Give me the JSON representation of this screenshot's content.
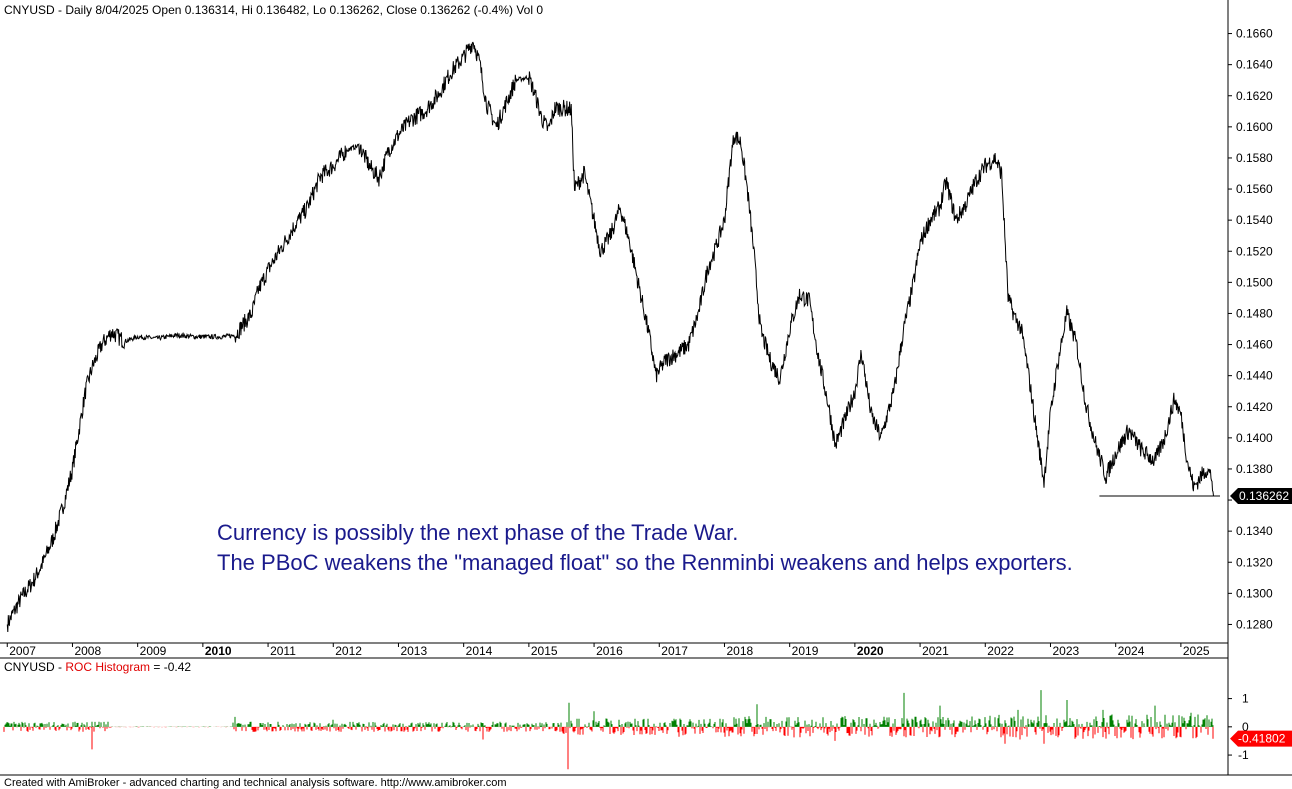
{
  "header": {
    "symbol": "CNYUSD",
    "info": " - Daily 8/04/2025 Open 0.136314, Hi 0.136482, Lo 0.136262, Close 0.136262 (-0.4%) Vol 0"
  },
  "price_panel": {
    "y_ticks": [
      "0.1660",
      "0.1640",
      "0.1620",
      "0.1600",
      "0.1580",
      "0.1560",
      "0.1540",
      "0.1520",
      "0.1500",
      "0.1480",
      "0.1460",
      "0.1440",
      "0.1420",
      "0.1400",
      "0.1380",
      "0.1360",
      "0.1340",
      "0.1320",
      "0.1300",
      "0.1280"
    ],
    "last_price_label": "0.136262"
  },
  "x_ticks": [
    {
      "label": "2007",
      "bold": false
    },
    {
      "label": "2008",
      "bold": false
    },
    {
      "label": "2009",
      "bold": false
    },
    {
      "label": "2010",
      "bold": true
    },
    {
      "label": "2011",
      "bold": false
    },
    {
      "label": "2012",
      "bold": false
    },
    {
      "label": "2013",
      "bold": false
    },
    {
      "label": "2014",
      "bold": false
    },
    {
      "label": "2015",
      "bold": false
    },
    {
      "label": "2016",
      "bold": false
    },
    {
      "label": "2017",
      "bold": false
    },
    {
      "label": "2018",
      "bold": false
    },
    {
      "label": "2019",
      "bold": false
    },
    {
      "label": "2020",
      "bold": true
    },
    {
      "label": "2021",
      "bold": false
    },
    {
      "label": "2022",
      "bold": false
    },
    {
      "label": "2023",
      "bold": false
    },
    {
      "label": "2024",
      "bold": false
    },
    {
      "label": "2025",
      "bold": false
    }
  ],
  "annotation": {
    "line1": "Currency is possibly the next phase of the Trade War.",
    "line2": "The PBoC weakens the \"managed float\" so the Renminbi weakens and helps exporters."
  },
  "roc_panel": {
    "symbol": "CNYUSD",
    "sep": " - ",
    "indicator": "ROC Histogram",
    "value_text": " = -0.42",
    "y_ticks": [
      "1",
      "0",
      "-1"
    ],
    "last_value_label": "-0.41802"
  },
  "footer": "Created with AmiBroker - advanced charting and technical analysis software. http://www.amibroker.com",
  "colors": {
    "price_line": "#000000",
    "roc_up": "#008000",
    "roc_down": "#ff0000",
    "annotation": "#1a1a8c",
    "label_bg": "#000000"
  },
  "chart_data": {
    "type": "line",
    "series": [
      {
        "values": [
          [
            2007.0,
            0.128
          ],
          [
            2007.2,
            0.1296
          ],
          [
            2007.4,
            0.1308
          ],
          [
            2007.55,
            0.132
          ],
          [
            2007.7,
            0.1335
          ],
          [
            2007.85,
            0.1355
          ],
          [
            2008.0,
            0.138
          ],
          [
            2008.1,
            0.1405
          ],
          [
            2008.2,
            0.143
          ],
          [
            2008.3,
            0.1445
          ],
          [
            2008.45,
            0.146
          ],
          [
            2008.6,
            0.1468
          ],
          [
            2008.8,
            0.1462
          ],
          [
            2009.0,
            0.1465
          ],
          [
            2009.3,
            0.1464
          ],
          [
            2009.6,
            0.1466
          ],
          [
            2009.9,
            0.1465
          ],
          [
            2010.3,
            0.1465
          ],
          [
            2010.5,
            0.1466
          ],
          [
            2010.6,
            0.1472
          ],
          [
            2010.75,
            0.148
          ],
          [
            2010.85,
            0.1495
          ],
          [
            2011.0,
            0.1508
          ],
          [
            2011.2,
            0.1522
          ],
          [
            2011.4,
            0.1536
          ],
          [
            2011.6,
            0.1548
          ],
          [
            2011.8,
            0.1568
          ],
          [
            2012.0,
            0.1575
          ],
          [
            2012.2,
            0.1585
          ],
          [
            2012.4,
            0.1588
          ],
          [
            2012.55,
            0.1575
          ],
          [
            2012.7,
            0.1567
          ],
          [
            2012.85,
            0.1585
          ],
          [
            2013.0,
            0.1595
          ],
          [
            2013.2,
            0.1605
          ],
          [
            2013.4,
            0.161
          ],
          [
            2013.6,
            0.162
          ],
          [
            2013.8,
            0.1635
          ],
          [
            2014.0,
            0.1645
          ],
          [
            2014.15,
            0.1655
          ],
          [
            2014.25,
            0.164
          ],
          [
            2014.35,
            0.1615
          ],
          [
            2014.5,
            0.16
          ],
          [
            2014.65,
            0.1615
          ],
          [
            2014.8,
            0.163
          ],
          [
            2015.0,
            0.1632
          ],
          [
            2015.1,
            0.162
          ],
          [
            2015.2,
            0.1605
          ],
          [
            2015.3,
            0.1598
          ],
          [
            2015.4,
            0.1612
          ],
          [
            2015.55,
            0.1612
          ],
          [
            2015.65,
            0.1611
          ],
          [
            2015.7,
            0.156
          ],
          [
            2015.85,
            0.157
          ],
          [
            2016.0,
            0.154
          ],
          [
            2016.1,
            0.152
          ],
          [
            2016.25,
            0.153
          ],
          [
            2016.4,
            0.1548
          ],
          [
            2016.55,
            0.1525
          ],
          [
            2016.7,
            0.1495
          ],
          [
            2016.85,
            0.1465
          ],
          [
            2016.95,
            0.144
          ],
          [
            2017.1,
            0.145
          ],
          [
            2017.3,
            0.1455
          ],
          [
            2017.45,
            0.146
          ],
          [
            2017.6,
            0.148
          ],
          [
            2017.75,
            0.151
          ],
          [
            2017.85,
            0.152
          ],
          [
            2018.0,
            0.154
          ],
          [
            2018.1,
            0.158
          ],
          [
            2018.15,
            0.1595
          ],
          [
            2018.25,
            0.159
          ],
          [
            2018.35,
            0.156
          ],
          [
            2018.45,
            0.152
          ],
          [
            2018.55,
            0.147
          ],
          [
            2018.7,
            0.145
          ],
          [
            2018.85,
            0.1438
          ],
          [
            2019.0,
            0.147
          ],
          [
            2019.15,
            0.1492
          ],
          [
            2019.3,
            0.1488
          ],
          [
            2019.45,
            0.145
          ],
          [
            2019.6,
            0.142
          ],
          [
            2019.7,
            0.1395
          ],
          [
            2019.85,
            0.1412
          ],
          [
            2020.0,
            0.143
          ],
          [
            2020.1,
            0.1455
          ],
          [
            2020.25,
            0.1415
          ],
          [
            2020.4,
            0.14
          ],
          [
            2020.6,
            0.143
          ],
          [
            2020.75,
            0.147
          ],
          [
            2020.9,
            0.15
          ],
          [
            2021.0,
            0.1525
          ],
          [
            2021.15,
            0.154
          ],
          [
            2021.3,
            0.1548
          ],
          [
            2021.4,
            0.1565
          ],
          [
            2021.55,
            0.154
          ],
          [
            2021.7,
            0.155
          ],
          [
            2021.85,
            0.1565
          ],
          [
            2022.0,
            0.1575
          ],
          [
            2022.15,
            0.158
          ],
          [
            2022.25,
            0.157
          ],
          [
            2022.35,
            0.149
          ],
          [
            2022.45,
            0.1478
          ],
          [
            2022.55,
            0.147
          ],
          [
            2022.65,
            0.1445
          ],
          [
            2022.8,
            0.14
          ],
          [
            2022.9,
            0.1372
          ],
          [
            2023.0,
            0.1415
          ],
          [
            2023.1,
            0.1445
          ],
          [
            2023.25,
            0.148
          ],
          [
            2023.4,
            0.146
          ],
          [
            2023.55,
            0.142
          ],
          [
            2023.7,
            0.1395
          ],
          [
            2023.85,
            0.1375
          ],
          [
            2024.0,
            0.139
          ],
          [
            2024.2,
            0.1405
          ],
          [
            2024.4,
            0.1392
          ],
          [
            2024.6,
            0.1385
          ],
          [
            2024.75,
            0.14
          ],
          [
            2024.9,
            0.1425
          ],
          [
            2025.0,
            0.1415
          ],
          [
            2025.1,
            0.1385
          ],
          [
            2025.2,
            0.1368
          ],
          [
            2025.3,
            0.1375
          ],
          [
            2025.4,
            0.138
          ],
          [
            2025.47,
            0.1375
          ],
          [
            2025.5,
            0.136262
          ]
        ]
      }
    ],
    "ylim": [
      0.127,
      0.167
    ],
    "xlim": [
      2006.95,
      2025.6
    ],
    "support_level": 0.13626,
    "support_from": 2023.75,
    "roc_histogram": {
      "ylim": [
        -1.6,
        1.8
      ],
      "last_value": -0.41802,
      "bars": [
        [
          2007.5,
          0.12
        ],
        [
          2008.3,
          -0.8
        ],
        [
          2010.5,
          0.35
        ],
        [
          2012.0,
          0.25
        ],
        [
          2014.3,
          -0.45
        ],
        [
          2015.6,
          -1.5
        ],
        [
          2015.62,
          0.85
        ],
        [
          2016.0,
          0.55
        ],
        [
          2017.3,
          -0.35
        ],
        [
          2018.5,
          0.8
        ],
        [
          2019.7,
          -0.5
        ],
        [
          2020.75,
          1.2
        ],
        [
          2021.3,
          0.75
        ],
        [
          2022.3,
          -0.6
        ],
        [
          2022.5,
          0.6
        ],
        [
          2022.85,
          1.3
        ],
        [
          2022.9,
          -0.6
        ],
        [
          2023.25,
          0.95
        ],
        [
          2023.8,
          0.6
        ],
        [
          2024.6,
          0.75
        ],
        [
          2025.15,
          0.5
        ],
        [
          2025.5,
          -0.42
        ]
      ]
    }
  }
}
